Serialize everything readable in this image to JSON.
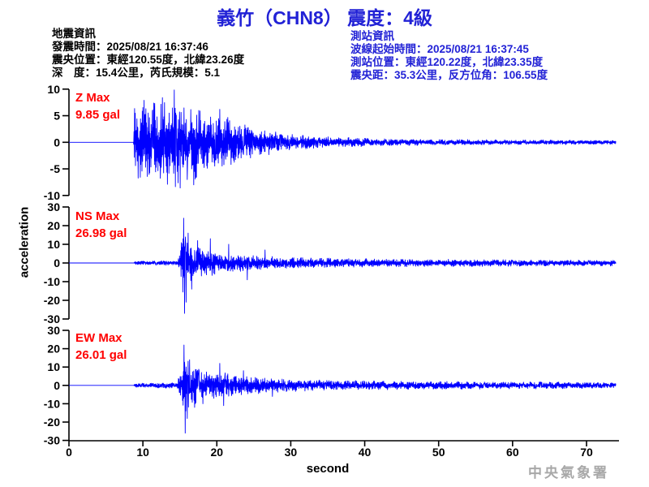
{
  "title": "義竹（CHN8） 震度：4級",
  "info_left": {
    "heading": "地震資訊",
    "lines": [
      "發震時間：2025/08/21 16:37:46",
      "震央位置：東經120.55度，北緯23.26度",
      "深　度：15.4公里，芮氏規模：5.1"
    ]
  },
  "info_right": {
    "heading": "測站資訊",
    "lines": [
      "波線起始時間：2025/08/21 16:37:45",
      "測站位置：東經120.22度，北緯23.35度",
      "震央距：35.3公里，反方位角：106.55度"
    ]
  },
  "colors": {
    "title_blue": "#2222d6",
    "trace_blue": "#0000ff",
    "max_label_red": "#ff0000",
    "axis_black": "#000000",
    "watermark_gray": "#a8a8a8"
  },
  "chart_data": {
    "type": "line",
    "title": "義竹（CHN8） 震度：4級",
    "xlabel": "second",
    "ylabel": "acceleration",
    "x_range": [
      0,
      74
    ],
    "x_ticks": [
      0,
      10,
      20,
      30,
      40,
      50,
      60,
      70
    ],
    "grid": false,
    "legend": "none",
    "channels": [
      {
        "name": "Z",
        "max_label": "Z Max",
        "max_value_text": "9.85 gal",
        "max_gal": 9.85,
        "unit": "gal",
        "ylim": [
          -10,
          10
        ],
        "yticks": [
          10,
          5,
          0,
          -5,
          -10
        ],
        "p_onset_s": 8.8,
        "seed": 101,
        "envelope": [
          [
            0,
            0
          ],
          [
            8.75,
            0
          ],
          [
            8.85,
            5.8
          ],
          [
            9.6,
            7.6
          ],
          [
            10.8,
            6.2
          ],
          [
            12.4,
            7.2
          ],
          [
            14.0,
            8.2
          ],
          [
            15.4,
            6.8
          ],
          [
            17,
            6.2
          ],
          [
            19,
            5.2
          ],
          [
            21,
            4.6
          ],
          [
            23,
            3.4
          ],
          [
            26,
            2.3
          ],
          [
            30,
            1.4
          ],
          [
            34,
            1.0
          ],
          [
            40,
            0.7
          ],
          [
            48,
            0.5
          ],
          [
            60,
            0.4
          ],
          [
            74,
            0.35
          ]
        ],
        "spikes": [
          [
            14.25,
            9.85
          ],
          [
            15.05,
            -8.6
          ],
          [
            10.15,
            7.9
          ],
          [
            12.65,
            8.4
          ],
          [
            16.9,
            -8.0
          ],
          [
            13.3,
            -7.9
          ],
          [
            20.4,
            6.2
          ]
        ]
      },
      {
        "name": "NS",
        "max_label": "NS Max",
        "max_value_text": "26.98 gal",
        "max_gal": 26.98,
        "unit": "gal",
        "ylim": [
          -30,
          30
        ],
        "yticks": [
          30,
          20,
          10,
          0,
          -10,
          -20,
          -30
        ],
        "p_onset_s": 8.8,
        "seed": 202,
        "envelope": [
          [
            0,
            0
          ],
          [
            8.75,
            0
          ],
          [
            8.9,
            0.9
          ],
          [
            11,
            1.0
          ],
          [
            14.6,
            1.2
          ],
          [
            15.1,
            6
          ],
          [
            15.45,
            20
          ],
          [
            15.8,
            16
          ],
          [
            16.4,
            11
          ],
          [
            17.2,
            8.5
          ],
          [
            18.5,
            7
          ],
          [
            20,
            5.5
          ],
          [
            22,
            4.5
          ],
          [
            24.5,
            3.8
          ],
          [
            27,
            3.2
          ],
          [
            31,
            2.7
          ],
          [
            36,
            2.3
          ],
          [
            42,
            2.0
          ],
          [
            50,
            1.8
          ],
          [
            60,
            1.6
          ],
          [
            74,
            1.4
          ]
        ],
        "spikes": [
          [
            15.5,
            24
          ],
          [
            15.62,
            -26.98
          ],
          [
            15.85,
            -21
          ],
          [
            16.1,
            16
          ],
          [
            16.6,
            -14
          ],
          [
            17.4,
            12
          ],
          [
            19.1,
            13
          ],
          [
            21.6,
            10
          ],
          [
            24.1,
            -9
          ],
          [
            26.5,
            7
          ]
        ]
      },
      {
        "name": "EW",
        "max_label": "EW Max",
        "max_value_text": "26.01 gal",
        "max_gal": 26.01,
        "unit": "gal",
        "ylim": [
          -30,
          30
        ],
        "yticks": [
          30,
          20,
          10,
          0,
          -10,
          -20,
          -30
        ],
        "p_onset_s": 8.8,
        "seed": 303,
        "envelope": [
          [
            0,
            0
          ],
          [
            8.75,
            0
          ],
          [
            8.9,
            1.0
          ],
          [
            11,
            1.1
          ],
          [
            14.6,
            1.7
          ],
          [
            15.15,
            7
          ],
          [
            15.5,
            19
          ],
          [
            15.95,
            15
          ],
          [
            16.6,
            11
          ],
          [
            17.6,
            8
          ],
          [
            19,
            6.5
          ],
          [
            20.3,
            7.5
          ],
          [
            21.6,
            6
          ],
          [
            23.5,
            4.8
          ],
          [
            26,
            3.8
          ],
          [
            30,
            3.0
          ],
          [
            36,
            2.5
          ],
          [
            43,
            2.1
          ],
          [
            52,
            1.9
          ],
          [
            62,
            1.7
          ],
          [
            74,
            1.5
          ]
        ],
        "spikes": [
          [
            15.55,
            22
          ],
          [
            15.72,
            -26.01
          ],
          [
            16.0,
            -18
          ],
          [
            16.3,
            14
          ],
          [
            17.0,
            -12
          ],
          [
            18.1,
            -10
          ],
          [
            20.4,
            12
          ],
          [
            20.9,
            -11
          ],
          [
            23.6,
            8
          ],
          [
            27.5,
            -6
          ]
        ]
      }
    ]
  },
  "footer": {
    "watermark": "中央氣象署"
  }
}
